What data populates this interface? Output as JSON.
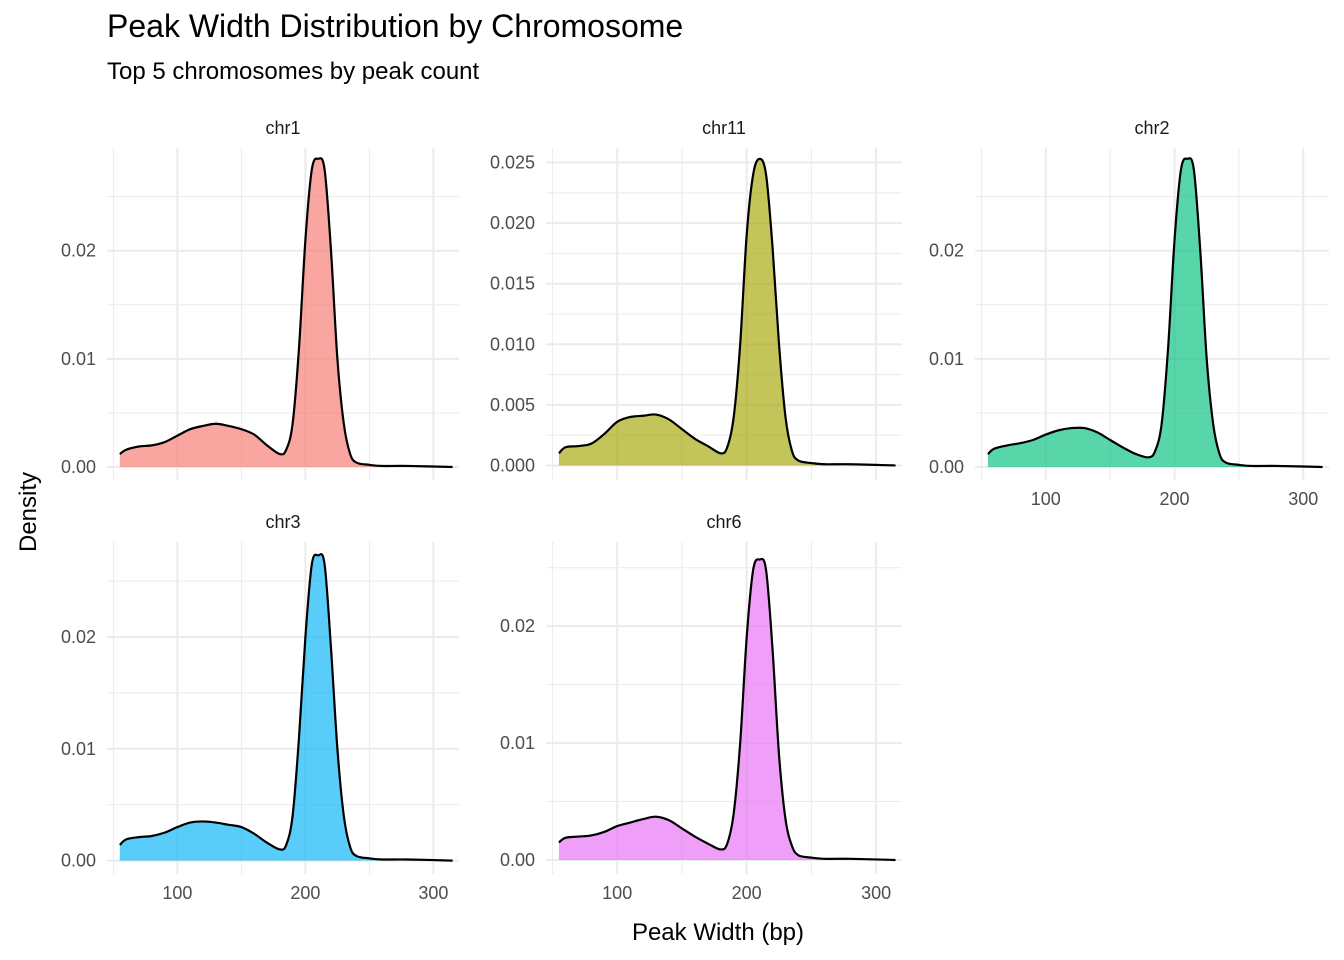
{
  "chart_data": {
    "type": "area",
    "title": "Peak Width Distribution by Chromosome",
    "subtitle": "Top 5 chromosomes by peak count",
    "xlabel": "Peak Width (bp)",
    "ylabel": "Density",
    "xlim": [
      45,
      320
    ],
    "x_ticks": [
      100,
      200,
      300
    ],
    "grid": true,
    "legend": "none",
    "facets": [
      {
        "name": "chr1",
        "color": "#F8766D",
        "ylim": [
          -0.0012,
          0.0295
        ],
        "y_ticks": [
          0,
          0.01,
          0.02
        ],
        "y_tick_labels": [
          "0.00",
          "0.01",
          "0.02"
        ],
        "show_x_labels": false,
        "x": [
          55,
          60,
          70,
          80,
          90,
          100,
          110,
          120,
          130,
          140,
          150,
          160,
          170,
          180,
          185,
          190,
          195,
          200,
          205,
          210,
          215,
          220,
          225,
          230,
          235,
          240,
          250,
          260,
          280,
          315
        ],
        "y": [
          0.0012,
          0.0016,
          0.0019,
          0.002,
          0.0023,
          0.0029,
          0.0035,
          0.0038,
          0.004,
          0.0038,
          0.0035,
          0.003,
          0.002,
          0.0012,
          0.0016,
          0.004,
          0.011,
          0.021,
          0.0275,
          0.0285,
          0.0275,
          0.02,
          0.01,
          0.004,
          0.0012,
          0.0004,
          0.0002,
          0.0001,
          0.0001,
          0.0
        ]
      },
      {
        "name": "chr11",
        "color": "#A3A500",
        "ylim": [
          -0.0012,
          0.0262
        ],
        "y_ticks": [
          0,
          0.005,
          0.01,
          0.015,
          0.02,
          0.025
        ],
        "y_tick_labels": [
          "0.000",
          "0.005",
          "0.010",
          "0.015",
          "0.020",
          "0.025"
        ],
        "show_x_labels": false,
        "x": [
          55,
          60,
          70,
          80,
          90,
          100,
          110,
          120,
          130,
          140,
          150,
          160,
          170,
          180,
          185,
          190,
          195,
          200,
          205,
          210,
          215,
          220,
          225,
          230,
          235,
          240,
          250,
          260,
          280,
          315
        ],
        "y": [
          0.001,
          0.0015,
          0.0016,
          0.0018,
          0.0026,
          0.0036,
          0.004,
          0.0041,
          0.0042,
          0.0038,
          0.003,
          0.0022,
          0.0016,
          0.001,
          0.0015,
          0.004,
          0.01,
          0.019,
          0.024,
          0.0253,
          0.024,
          0.018,
          0.01,
          0.004,
          0.0012,
          0.0004,
          0.0002,
          0.0001,
          0.0001,
          0.0
        ]
      },
      {
        "name": "chr2",
        "color": "#00BF7D",
        "ylim": [
          -0.0012,
          0.0295
        ],
        "y_ticks": [
          0,
          0.01,
          0.02
        ],
        "y_tick_labels": [
          "0.00",
          "0.01",
          "0.02"
        ],
        "show_x_labels": true,
        "x": [
          55,
          60,
          70,
          80,
          90,
          100,
          110,
          120,
          130,
          140,
          150,
          160,
          170,
          180,
          185,
          190,
          195,
          200,
          205,
          210,
          215,
          220,
          225,
          230,
          235,
          240,
          250,
          260,
          280,
          315
        ],
        "y": [
          0.0012,
          0.0017,
          0.002,
          0.0022,
          0.0025,
          0.003,
          0.0034,
          0.0036,
          0.0036,
          0.0032,
          0.0025,
          0.0018,
          0.0012,
          0.0009,
          0.0015,
          0.004,
          0.011,
          0.021,
          0.0275,
          0.0285,
          0.0275,
          0.02,
          0.01,
          0.004,
          0.0012,
          0.0004,
          0.0002,
          0.0001,
          0.0001,
          0.0
        ]
      },
      {
        "name": "chr3",
        "color": "#00B0F6",
        "ylim": [
          -0.0012,
          0.0285
        ],
        "y_ticks": [
          0,
          0.01,
          0.02
        ],
        "y_tick_labels": [
          "0.00",
          "0.01",
          "0.02"
        ],
        "show_x_labels": true,
        "x": [
          55,
          60,
          70,
          80,
          90,
          100,
          110,
          120,
          130,
          140,
          150,
          160,
          170,
          180,
          185,
          190,
          195,
          200,
          205,
          210,
          215,
          220,
          225,
          230,
          235,
          240,
          250,
          260,
          280,
          315
        ],
        "y": [
          0.0014,
          0.0019,
          0.0021,
          0.0022,
          0.0025,
          0.003,
          0.0034,
          0.0035,
          0.0034,
          0.0032,
          0.003,
          0.0024,
          0.0016,
          0.001,
          0.0014,
          0.004,
          0.011,
          0.02,
          0.0265,
          0.0273,
          0.0265,
          0.019,
          0.01,
          0.004,
          0.0012,
          0.0004,
          0.0002,
          0.0001,
          0.0001,
          0.0
        ]
      },
      {
        "name": "chr6",
        "color": "#E76BF3",
        "ylim": [
          -0.0012,
          0.0272
        ],
        "y_ticks": [
          0,
          0.01,
          0.02
        ],
        "y_tick_labels": [
          "0.00",
          "0.01",
          "0.02"
        ],
        "show_x_labels": true,
        "x": [
          55,
          60,
          70,
          80,
          90,
          100,
          110,
          120,
          130,
          140,
          150,
          160,
          170,
          180,
          185,
          190,
          195,
          200,
          205,
          210,
          215,
          220,
          225,
          230,
          235,
          240,
          250,
          260,
          280,
          315
        ],
        "y": [
          0.0015,
          0.0019,
          0.002,
          0.0021,
          0.0024,
          0.0029,
          0.0032,
          0.0035,
          0.0037,
          0.0034,
          0.0027,
          0.002,
          0.0014,
          0.0009,
          0.0014,
          0.004,
          0.01,
          0.019,
          0.0248,
          0.0257,
          0.0248,
          0.018,
          0.009,
          0.0035,
          0.0012,
          0.0004,
          0.0002,
          0.0001,
          0.0001,
          0.0
        ]
      }
    ]
  }
}
